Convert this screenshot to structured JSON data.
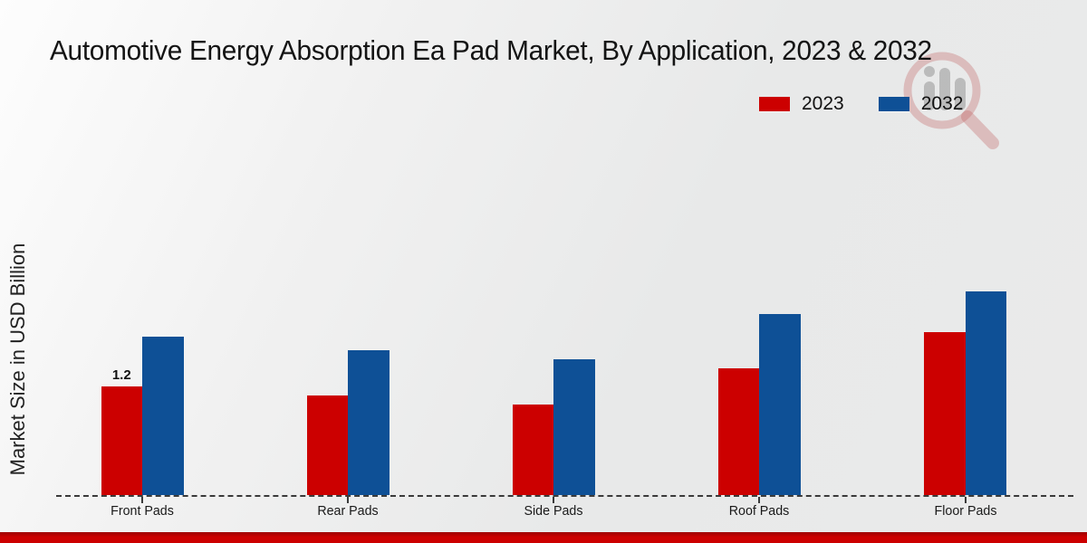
{
  "chart_data": {
    "type": "bar",
    "title": "Automotive Energy Absorption Ea Pad Market, By Application, 2023 & 2032",
    "ylabel": "Market Size in USD Billion",
    "xlabel": "",
    "categories": [
      "Front Pads",
      "Rear Pads",
      "Side Pads",
      "Roof Pads",
      "Floor Pads"
    ],
    "series": [
      {
        "name": "2023",
        "color": "#cc0000",
        "values": [
          1.2,
          1.1,
          1.0,
          1.4,
          1.8
        ],
        "value_labels": [
          "1.2",
          "",
          "",
          "",
          ""
        ]
      },
      {
        "name": "2032",
        "color": "#0e5096",
        "values": [
          1.75,
          1.6,
          1.5,
          2.0,
          2.25
        ],
        "value_labels": [
          "",
          "",
          "",
          "",
          ""
        ]
      }
    ],
    "ylim": [
      0,
      2.5
    ],
    "grid": false,
    "legend_position": "top-right",
    "baseline_style": "dashed"
  },
  "colors": {
    "accent_red": "#cc0000",
    "accent_blue": "#0e5096",
    "footer_strip": "#cc0000",
    "axis": "#3a3a3a"
  },
  "icons": {
    "watermark": "magnifier-bar-chart-logo"
  }
}
